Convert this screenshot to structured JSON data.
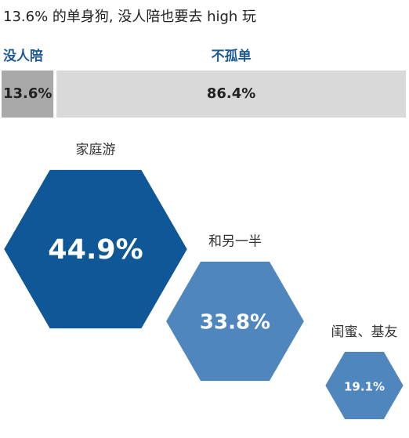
{
  "chart_data": [
    {
      "type": "stacked-bar",
      "title": "13.6% 的单身狗, 没人陪也要去 high 玩",
      "series": [
        {
          "name": "没人陪",
          "color": "#a9a9a9",
          "values": [
            13.6
          ],
          "value_labels": [
            "13.6%"
          ]
        },
        {
          "name": "不孤单",
          "color": "#d9d9d9",
          "values": [
            86.4
          ],
          "value_labels": [
            "86.4%"
          ]
        }
      ]
    },
    {
      "type": "hexagon",
      "categories": [
        "家庭游",
        "和另一半",
        "闺蜜、基友"
      ],
      "values": [
        44.9,
        33.8,
        19.1
      ],
      "value_labels": [
        "44.9%",
        "33.8%",
        "19.1%"
      ],
      "colors": [
        "#0f5796",
        "#4f86bd",
        "#4f86bd"
      ]
    }
  ]
}
